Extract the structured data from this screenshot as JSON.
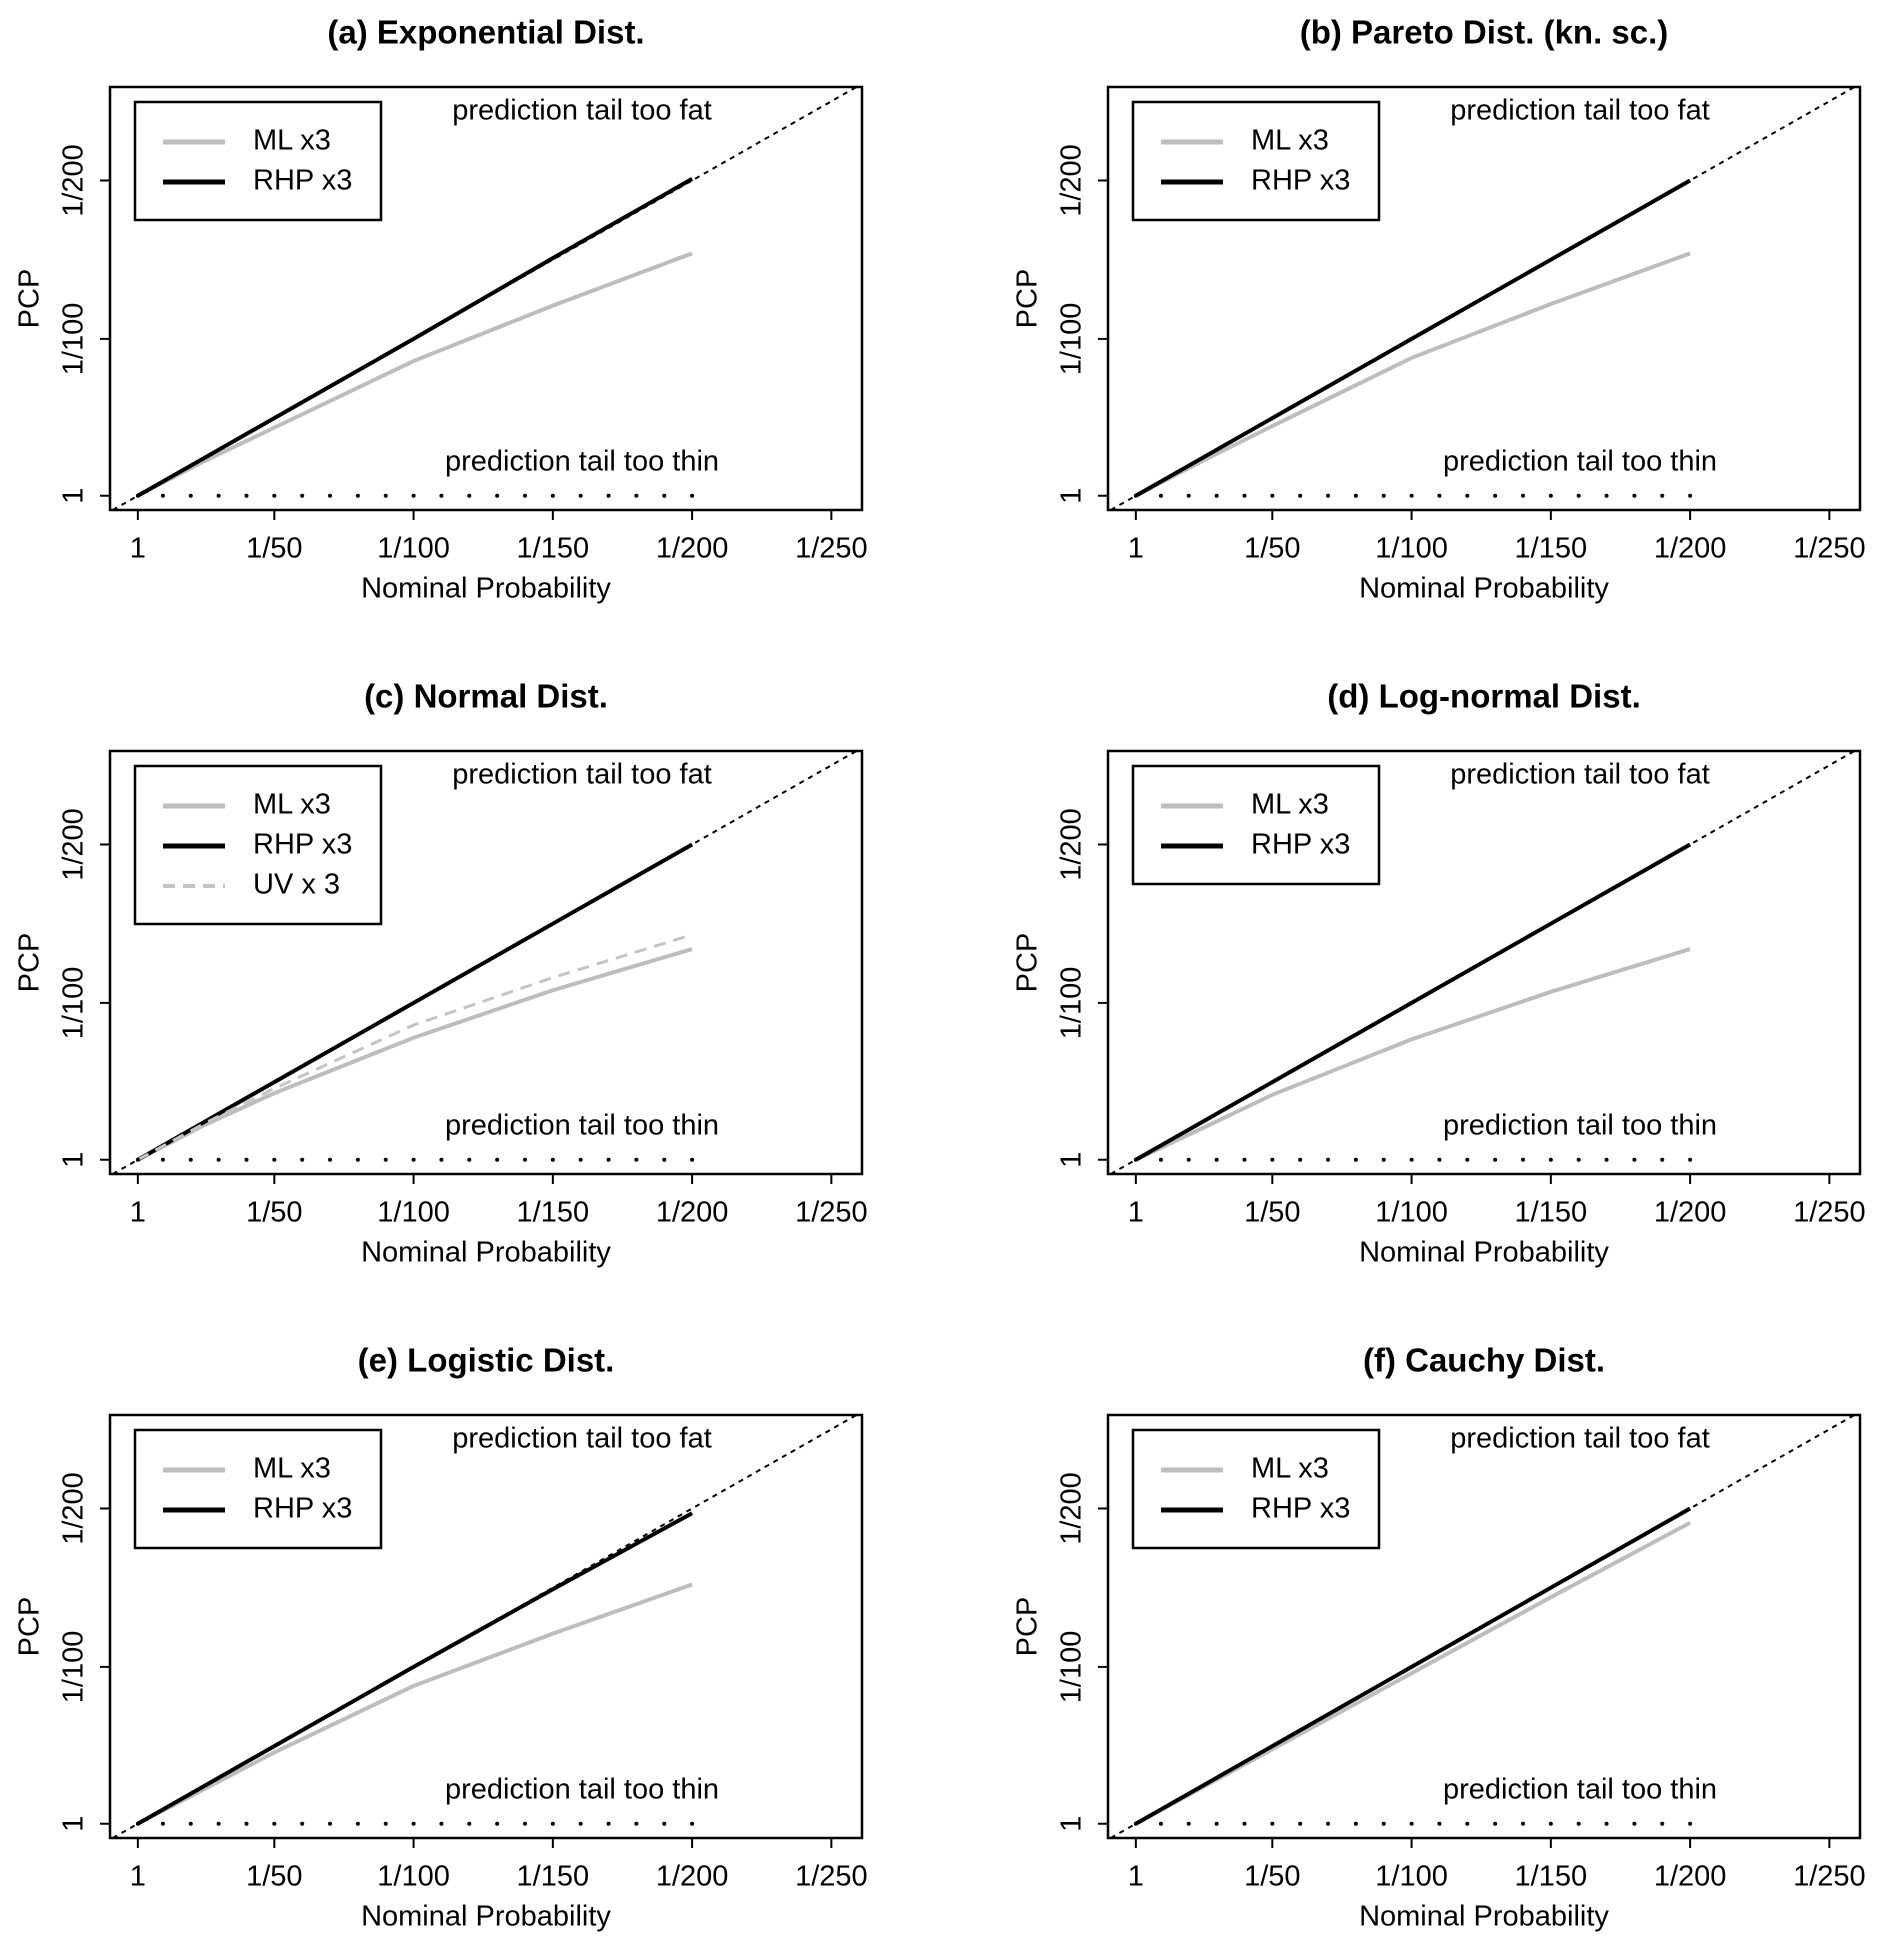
{
  "chart_data": [
    {
      "type": "line",
      "title": "(a) Exponential Dist.",
      "xlabel": "Nominal Probability",
      "ylabel": "PCP",
      "annotations": [
        "prediction tail too fat",
        "prediction tail too thin"
      ],
      "legend": "top-left",
      "x": [
        1,
        25,
        50,
        100,
        150,
        200
      ],
      "series": [
        {
          "name": "ML x3",
          "color": "#bdbdbd",
          "style": "solid",
          "values": [
            1,
            23,
            44,
            86,
            121,
            154
          ]
        },
        {
          "name": "RHP x3",
          "color": "#000000",
          "style": "solid",
          "values": [
            1,
            25,
            50,
            100,
            151,
            201
          ]
        },
        {
          "color": "#000000",
          "style": "points",
          "x": [
            1,
            10,
            20,
            30,
            40,
            50,
            60,
            70,
            80,
            90,
            100,
            110,
            120,
            130,
            140,
            150,
            160,
            170,
            180,
            190,
            200
          ],
          "values": [
            1,
            1,
            1,
            1,
            1,
            1,
            1,
            1,
            1,
            1,
            1,
            1,
            1,
            1,
            1,
            1,
            1,
            1,
            1,
            1,
            1
          ]
        }
      ],
      "xlim": [
        -9,
        261
      ],
      "ylim": [
        -8,
        259
      ],
      "xticks": [
        1,
        {
          "value": 50,
          "label": "1/50"
        },
        {
          "value": 100,
          "label": "1/100"
        },
        {
          "value": 150,
          "label": "1/150"
        },
        {
          "value": 200,
          "label": "1/200"
        },
        {
          "value": 250,
          "label": "1/250"
        }
      ],
      "yticks": [
        1,
        {
          "value": 100,
          "label": "1/100"
        },
        {
          "value": 200,
          "label": "1/200"
        }
      ]
    },
    {
      "type": "line",
      "title": "(b) Pareto Dist. (kn. sc.)",
      "xlabel": "Nominal Probability",
      "ylabel": "PCP",
      "annotations": [
        "prediction tail too fat",
        "prediction tail too thin"
      ],
      "legend": "top-left",
      "x": [
        1,
        25,
        50,
        100,
        150,
        200
      ],
      "series": [
        {
          "name": "ML x3",
          "color": "#bdbdbd",
          "style": "solid",
          "values": [
            1,
            23,
            45,
            88,
            122,
            154
          ]
        },
        {
          "name": "RHP x3",
          "color": "#000000",
          "style": "solid",
          "values": [
            1,
            25,
            50,
            100,
            150,
            200
          ]
        },
        {
          "color": "#000000",
          "style": "points",
          "x": [
            1,
            10,
            20,
            30,
            40,
            50,
            60,
            70,
            80,
            90,
            100,
            110,
            120,
            130,
            140,
            150,
            160,
            170,
            180,
            190,
            200
          ],
          "values": [
            1,
            1,
            1,
            1,
            1,
            1,
            1,
            1,
            1,
            1,
            1,
            1,
            1,
            1,
            1,
            1,
            1,
            1,
            1,
            1,
            1
          ]
        }
      ],
      "xlim": [
        -9,
        261
      ],
      "ylim": [
        -8,
        259
      ],
      "xticks": [
        1,
        {
          "value": 50,
          "label": "1/50"
        },
        {
          "value": 100,
          "label": "1/100"
        },
        {
          "value": 150,
          "label": "1/150"
        },
        {
          "value": 200,
          "label": "1/200"
        },
        {
          "value": 250,
          "label": "1/250"
        }
      ],
      "yticks": [
        1,
        {
          "value": 100,
          "label": "1/100"
        },
        {
          "value": 200,
          "label": "1/200"
        }
      ]
    },
    {
      "type": "line",
      "title": "(c) Normal Dist.",
      "xlabel": "Nominal Probability",
      "ylabel": "PCP",
      "annotations": [
        "prediction tail too fat",
        "prediction tail too thin"
      ],
      "legend": "top-left",
      "x": [
        1,
        25,
        50,
        100,
        150,
        200
      ],
      "series": [
        {
          "name": "ML x3",
          "color": "#bdbdbd",
          "style": "solid",
          "values": [
            1,
            23,
            43,
            78,
            108,
            134
          ]
        },
        {
          "name": "RHP x3",
          "color": "#000000",
          "style": "solid",
          "values": [
            1,
            25,
            50,
            100,
            150,
            200
          ]
        },
        {
          "name": "UV x 3",
          "color": "#c4c4c4",
          "style": "dashed",
          "values": [
            1,
            24,
            46,
            86,
            116,
            143
          ]
        },
        {
          "color": "#000000",
          "style": "points",
          "x": [
            1,
            10,
            20,
            30,
            40,
            50,
            60,
            70,
            80,
            90,
            100,
            110,
            120,
            130,
            140,
            150,
            160,
            170,
            180,
            190,
            200
          ],
          "values": [
            1,
            1,
            1,
            1,
            1,
            1,
            1,
            1,
            1,
            1,
            1,
            1,
            1,
            1,
            1,
            1,
            1,
            1,
            1,
            1,
            1
          ]
        }
      ],
      "xlim": [
        -9,
        261
      ],
      "ylim": [
        -8,
        259
      ],
      "xticks": [
        1,
        {
          "value": 50,
          "label": "1/50"
        },
        {
          "value": 100,
          "label": "1/100"
        },
        {
          "value": 150,
          "label": "1/150"
        },
        {
          "value": 200,
          "label": "1/200"
        },
        {
          "value": 250,
          "label": "1/250"
        }
      ],
      "yticks": [
        1,
        {
          "value": 100,
          "label": "1/100"
        },
        {
          "value": 200,
          "label": "1/200"
        }
      ]
    },
    {
      "type": "line",
      "title": "(d) Log-normal Dist.",
      "xlabel": "Nominal Probability",
      "ylabel": "PCP",
      "annotations": [
        "prediction tail too fat",
        "prediction tail too thin"
      ],
      "legend": "top-left",
      "x": [
        1,
        25,
        50,
        100,
        150,
        200
      ],
      "series": [
        {
          "name": "ML x3",
          "color": "#bdbdbd",
          "style": "solid",
          "values": [
            1,
            21,
            42,
            77,
            107,
            134
          ]
        },
        {
          "name": "RHP x3",
          "color": "#000000",
          "style": "solid",
          "values": [
            1,
            25,
            50,
            100,
            150,
            200
          ]
        },
        {
          "color": "#000000",
          "style": "points",
          "x": [
            1,
            10,
            20,
            30,
            40,
            50,
            60,
            70,
            80,
            90,
            100,
            110,
            120,
            130,
            140,
            150,
            160,
            170,
            180,
            190,
            200
          ],
          "values": [
            1,
            1,
            1,
            1,
            1,
            1,
            1,
            1,
            1,
            1,
            1,
            1,
            1,
            1,
            1,
            1,
            1,
            1,
            1,
            1,
            1
          ]
        }
      ],
      "xlim": [
        -9,
        261
      ],
      "ylim": [
        -8,
        259
      ],
      "xticks": [
        1,
        {
          "value": 50,
          "label": "1/50"
        },
        {
          "value": 100,
          "label": "1/100"
        },
        {
          "value": 150,
          "label": "1/150"
        },
        {
          "value": 200,
          "label": "1/200"
        },
        {
          "value": 250,
          "label": "1/250"
        }
      ],
      "yticks": [
        1,
        {
          "value": 100,
          "label": "1/100"
        },
        {
          "value": 200,
          "label": "1/200"
        }
      ]
    },
    {
      "type": "line",
      "title": "(e) Logistic Dist.",
      "xlabel": "Nominal Probability",
      "ylabel": "PCP",
      "annotations": [
        "prediction tail too fat",
        "prediction tail too thin"
      ],
      "legend": "top-left",
      "x": [
        1,
        25,
        50,
        100,
        150,
        200
      ],
      "series": [
        {
          "name": "ML x3",
          "color": "#bdbdbd",
          "style": "solid",
          "values": [
            1,
            23,
            46,
            88,
            121,
            152
          ]
        },
        {
          "name": "RHP x3",
          "color": "#000000",
          "style": "solid",
          "values": [
            1,
            25,
            50,
            100,
            149,
            197
          ]
        },
        {
          "color": "#000000",
          "style": "points",
          "x": [
            1,
            10,
            20,
            30,
            40,
            50,
            60,
            70,
            80,
            90,
            100,
            110,
            120,
            130,
            140,
            150,
            160,
            170,
            180,
            190,
            200
          ],
          "values": [
            1,
            1,
            1,
            1,
            1,
            1,
            1,
            1,
            1,
            1,
            1,
            1,
            1,
            1,
            1,
            1,
            1,
            1,
            1,
            1,
            1
          ]
        }
      ],
      "xlim": [
        -9,
        261
      ],
      "ylim": [
        -8,
        259
      ],
      "xticks": [
        1,
        {
          "value": 50,
          "label": "1/50"
        },
        {
          "value": 100,
          "label": "1/100"
        },
        {
          "value": 150,
          "label": "1/150"
        },
        {
          "value": 200,
          "label": "1/200"
        },
        {
          "value": 250,
          "label": "1/250"
        }
      ],
      "yticks": [
        1,
        {
          "value": 100,
          "label": "1/100"
        },
        {
          "value": 200,
          "label": "1/200"
        }
      ]
    },
    {
      "type": "line",
      "title": "(f) Cauchy Dist.",
      "xlabel": "Nominal Probability",
      "ylabel": "PCP",
      "annotations": [
        "prediction tail too fat",
        "prediction tail too thin"
      ],
      "legend": "top-left",
      "x": [
        1,
        25,
        50,
        100,
        150,
        200
      ],
      "series": [
        {
          "name": "ML x3",
          "color": "#bdbdbd",
          "style": "solid",
          "values": [
            1,
            24,
            48,
            96,
            144,
            191
          ]
        },
        {
          "name": "RHP x3",
          "color": "#000000",
          "style": "solid",
          "values": [
            1,
            25,
            50,
            100,
            150,
            200
          ]
        },
        {
          "color": "#000000",
          "style": "points",
          "x": [
            1,
            10,
            20,
            30,
            40,
            50,
            60,
            70,
            80,
            90,
            100,
            110,
            120,
            130,
            140,
            150,
            160,
            170,
            180,
            190,
            200
          ],
          "values": [
            1,
            1,
            1,
            1,
            1,
            1,
            1,
            1,
            1,
            1,
            1,
            1,
            1,
            1,
            1,
            1,
            1,
            1,
            1,
            1,
            1
          ]
        }
      ],
      "xlim": [
        -9,
        261
      ],
      "ylim": [
        -8,
        259
      ],
      "xticks": [
        1,
        {
          "value": 50,
          "label": "1/50"
        },
        {
          "value": 100,
          "label": "1/100"
        },
        {
          "value": 150,
          "label": "1/150"
        },
        {
          "value": 200,
          "label": "1/200"
        },
        {
          "value": 250,
          "label": "1/250"
        }
      ],
      "yticks": [
        1,
        {
          "value": 100,
          "label": "1/100"
        },
        {
          "value": 200,
          "label": "1/200"
        }
      ]
    }
  ]
}
